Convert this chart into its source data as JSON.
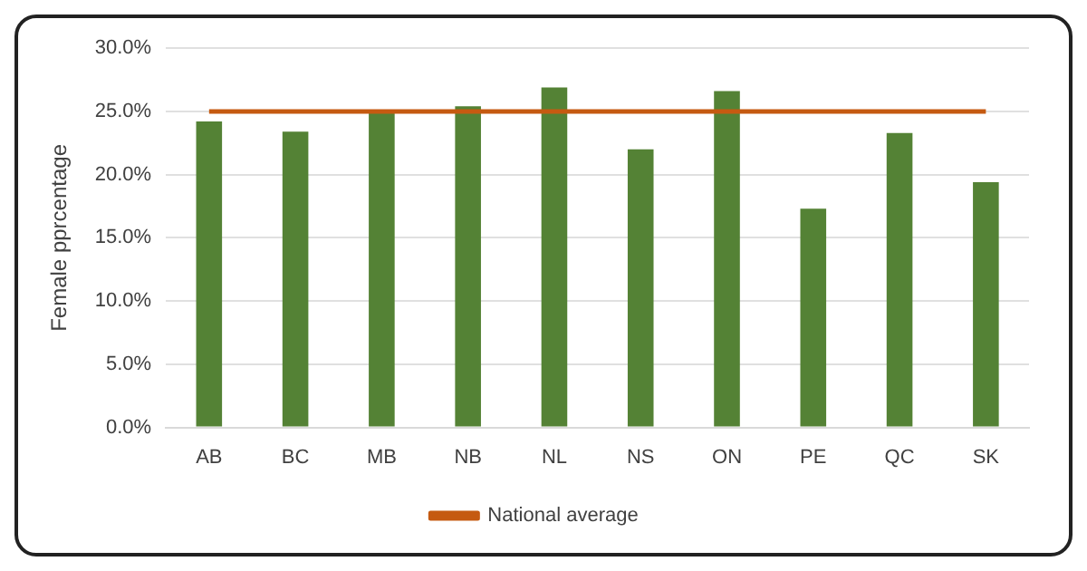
{
  "chart_data": {
    "type": "bar",
    "ylabel": "Female pprcentage",
    "categories": [
      "AB",
      "BC",
      "MB",
      "NB",
      "NL",
      "NS",
      "ON",
      "PE",
      "QC",
      "SK"
    ],
    "series": [
      {
        "color": "#548235",
        "values": [
          24.2,
          23.4,
          25.0,
          25.4,
          26.9,
          22.0,
          26.6,
          17.3,
          23.3,
          19.4
        ]
      },
      {
        "name": "National average",
        "type": "line",
        "color": "#c55a11",
        "values": [
          25.0,
          25.0,
          25.0,
          25.0,
          25.0,
          25.0,
          25.0,
          25.0,
          25.0,
          25.0
        ]
      }
    ],
    "ylim": [
      0,
      30
    ],
    "yticks": [
      {
        "value": 0,
        "label": "0.0%"
      },
      {
        "value": 5,
        "label": "5.0%"
      },
      {
        "value": 10,
        "label": "10.0%"
      },
      {
        "value": 15,
        "label": "15.0%"
      },
      {
        "value": 20,
        "label": "20.0%"
      },
      {
        "value": 25,
        "label": "25.0%"
      },
      {
        "value": 30,
        "label": "30.0%"
      }
    ],
    "grid": "y",
    "legend": "bottom",
    "marker": "none"
  }
}
